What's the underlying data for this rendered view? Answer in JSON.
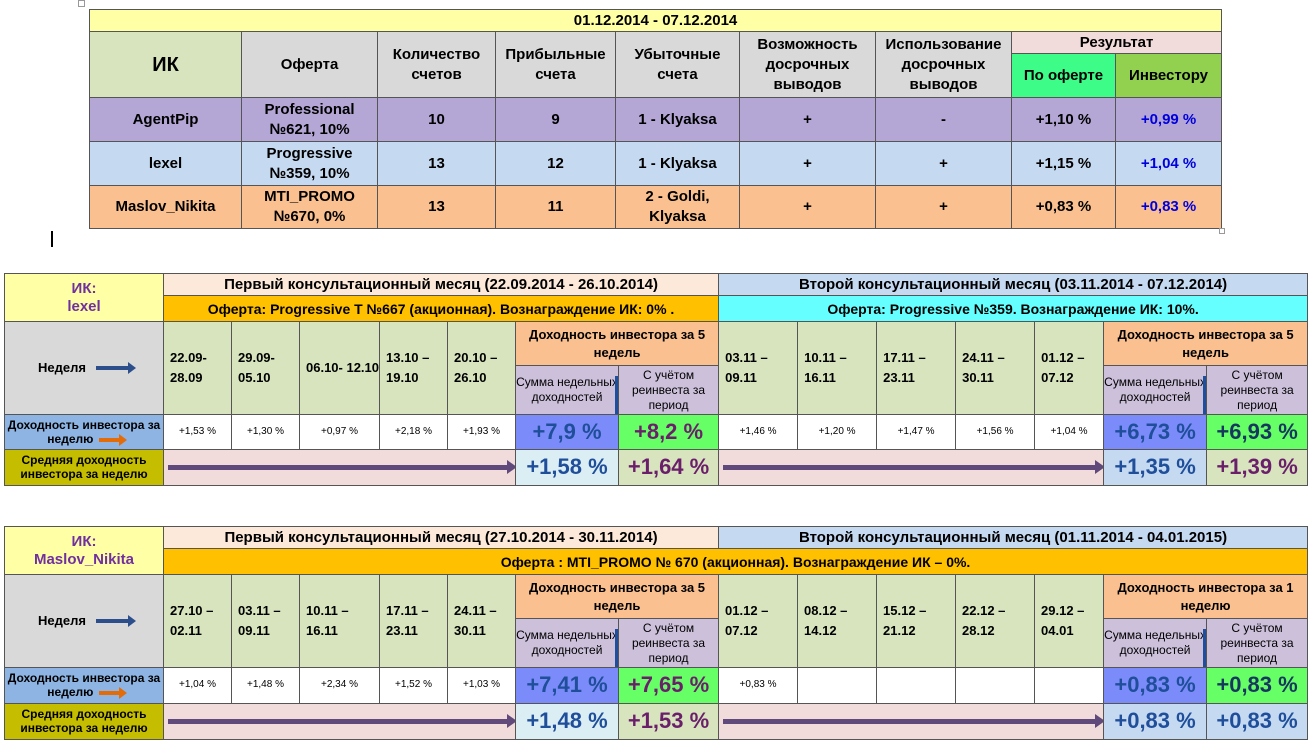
{
  "summary": {
    "period": "01.12.2014 - 07.12.2014",
    "headers": {
      "ik": "ИК",
      "offer": "Оферта",
      "accounts": "Количество счетов",
      "profit": "Прибыльные счета",
      "loss": "Убыточные счета",
      "early_possible": "Возможность досрочных выводов",
      "early_used": "Использование досрочных выводов",
      "result": "Результат",
      "by_offer": "По оферте",
      "to_investor": "Инвестору"
    },
    "rows": [
      {
        "ik": "AgentPip",
        "offer": "Professional №621, 10%",
        "accounts": "10",
        "profit": "9",
        "loss": "1 - Klyaksa",
        "early_possible": "+",
        "early_used": "-",
        "by_offer": "+1,10 %",
        "to_investor": "+0,99 %"
      },
      {
        "ik": "lexel",
        "offer": "Progressive №359, 10%",
        "accounts": "13",
        "profit": "12",
        "loss": "1 -  Klyaksa",
        "early_possible": "+",
        "early_used": "+",
        "by_offer": "+1,15 %",
        "to_investor": "+1,04 %"
      },
      {
        "ik": "Maslov_Nikita",
        "offer": "MTI_PROMO №670, 0%",
        "accounts": "13",
        "profit": "11",
        "loss": "2 -  Goldi, Klyaksa",
        "early_possible": "+",
        "early_used": "+",
        "by_offer": "+0,83 %",
        "to_investor": "+0,83 %"
      }
    ]
  },
  "lexel": {
    "ik_label": "ИК:",
    "ik_name": "lexel",
    "month1": "Первый консультационный месяц (22.09.2014 - 26.10.2014)",
    "month2": "Второй консультационный месяц (03.11.2014 - 07.12.2014)",
    "offer1": "Оферта: Progressive T №667 (акционная). Вознаграждение ИК: 0% .",
    "offer2": "Оферта: Progressive №359. Вознаграждение ИК: 10%.",
    "week_label": "Неделя",
    "yield_head1": "Доходность инвестора за 5 недель",
    "yield_head2": "Доходность инвестора за 5 недель",
    "sum_label": "Сумма недельных доходностей",
    "reinvest_label": "С учётом реинвеста за период",
    "weeks1": [
      "22.09- 28.09",
      "29.09- 05.10",
      "06.10- 12.10",
      "13.10 – 19.10",
      "20.10 – 26.10"
    ],
    "weeks2": [
      "03.11 – 09.11",
      "10.11 – 16.11",
      "17.11 – 23.11",
      "24.11 – 30.11",
      "01.12 – 07.12"
    ],
    "row_weekly_label": "Доходность инвестора за неделю",
    "row_avg_label": "Средняя доходность инвестора за неделю",
    "weekly1": [
      "+1,53 %",
      "+1,30 %",
      "+0,97 %",
      "+2,18 %",
      "+1,93 %"
    ],
    "weekly2": [
      "+1,46 %",
      "+1,20 %",
      "+1,47 %",
      "+1,56 %",
      "+1,04 %"
    ],
    "sum1": "+7,9 %",
    "reinv1": "+8,2 %",
    "sum2": "+6,73 %",
    "reinv2": "+6,93 %",
    "avg_sum1": "+1,58 %",
    "avg_reinv1": "+1,64 %",
    "avg_sum2": "+1,35 %",
    "avg_reinv2": "+1,39 %"
  },
  "maslov": {
    "ik_label": "ИК:",
    "ik_name": "Maslov_Nikita",
    "month1": "Первый консультационный месяц (27.10.2014 - 30.11.2014)",
    "month2": "Второй консультационный месяц (01.11.2014 - 04.01.2015)",
    "offer": "Оферта :  MTI_PROMO № 670 (акционная). Вознаграждение ИК – 0%.",
    "week_label": "Неделя",
    "yield_head1": "Доходность инвестора за 5 недель",
    "yield_head2": "Доходность инвестора за 1 неделю",
    "sum_label": "Сумма недельных доходностей",
    "reinvest_label": "С учётом реинвеста за период",
    "weeks1": [
      "27.10 – 02.11",
      "03.11 – 09.11",
      "10.11 – 16.11",
      "17.11 – 23.11",
      "24.11 – 30.11"
    ],
    "weeks2": [
      "01.12 – 07.12",
      "08.12 – 14.12",
      "15.12 – 21.12",
      "22.12 – 28.12",
      "29.12 – 04.01"
    ],
    "row_weekly_label": "Доходность инвестора за неделю",
    "row_avg_label": "Средняя доходность инвестора за неделю",
    "weekly1": [
      "+1,04 %",
      "+1,48 %",
      "+2,34 %",
      "+1,52 %",
      "+1,03 %"
    ],
    "weekly2": [
      "+0,83 %",
      "",
      "",
      "",
      ""
    ],
    "sum1": "+7,41 %",
    "reinv1": "+7,65 %",
    "sum2": "+0,83 %",
    "reinv2": "+0,83 %",
    "avg_sum1": "+1,48 %",
    "avg_reinv1": "+1,53 %",
    "avg_sum2": "+0,83 %",
    "avg_reinv2": "+0,83 %"
  }
}
